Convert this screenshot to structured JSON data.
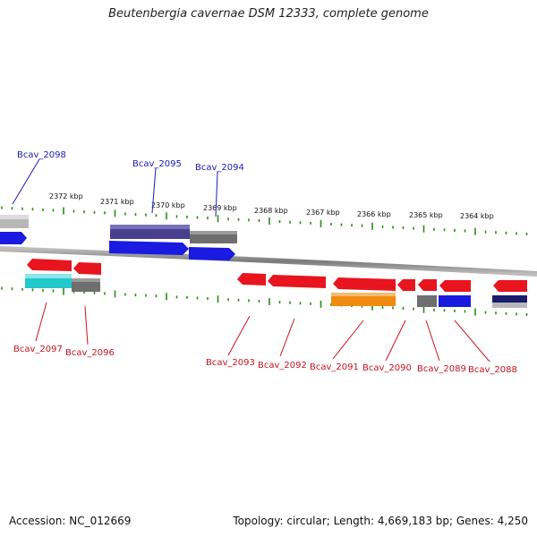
{
  "title": "Beutenbergia cavernae DSM 12333, complete genome",
  "footer": {
    "accession": "Accession: NC_012669",
    "summary": "Topology: circular; Length: 4,669,183 bp; Genes: 4,250"
  },
  "colors": {
    "backbone": "#8c8c8c",
    "tick": "#2a8a1a",
    "forward_label": "#1a1ab8",
    "reverse_label": "#c8141e",
    "red_gene": "#e8141e",
    "blue_gene": "#1a1ae0",
    "navy_gene": "#4a3f8f",
    "gray_gene": "#6e6e6e",
    "cyan_gene": "#22c8cc",
    "orange_gene": "#f08a10"
  },
  "scale_labels": [
    "2372 kbp",
    "2371 kbp",
    "2370 kbp",
    "2369 kbp",
    "2368 kbp",
    "2367 kbp",
    "2366 kbp",
    "2365 kbp",
    "2364 kbp"
  ],
  "forward_genes": [
    "Bcav_2098",
    "Bcav_2095",
    "Bcav_2094"
  ],
  "reverse_genes": [
    "Bcav_2097",
    "Bcav_2096",
    "Bcav_2093",
    "Bcav_2092",
    "Bcav_2091",
    "Bcav_2090",
    "Bcav_2089",
    "Bcav_2088"
  ]
}
